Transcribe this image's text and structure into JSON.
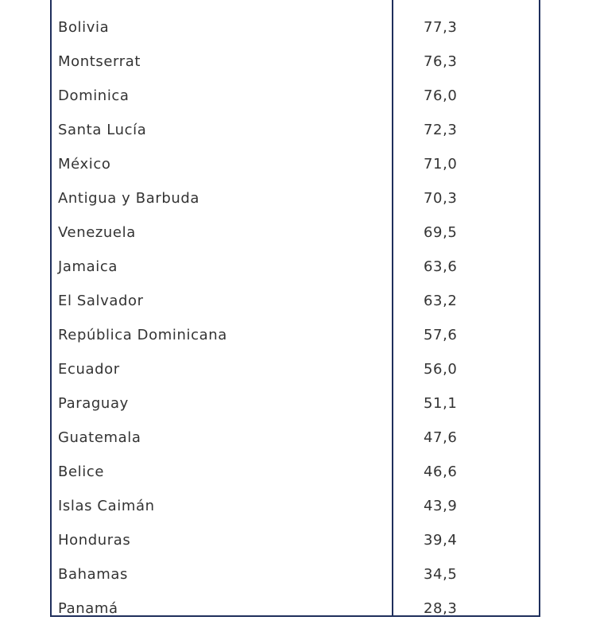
{
  "table": {
    "rows": [
      {
        "country": "Bolivia",
        "value": "77,3"
      },
      {
        "country": "Montserrat",
        "value": "76,3"
      },
      {
        "country": "Dominica",
        "value": "76,0"
      },
      {
        "country": "Santa Lucía",
        "value": "72,3"
      },
      {
        "country": "México",
        "value": "71,0"
      },
      {
        "country": "Antigua y Barbuda",
        "value": "70,3"
      },
      {
        "country": "Venezuela",
        "value": "69,5"
      },
      {
        "country": "Jamaica",
        "value": "63,6"
      },
      {
        "country": "El Salvador",
        "value": "63,2"
      },
      {
        "country": "República Dominicana",
        "value": "57,6"
      },
      {
        "country": "Ecuador",
        "value": "56,0"
      },
      {
        "country": "Paraguay",
        "value": "51,1"
      },
      {
        "country": "Guatemala",
        "value": "47,6"
      },
      {
        "country": "Belice",
        "value": "46,6"
      },
      {
        "country": "Islas Caimán",
        "value": "43,9"
      },
      {
        "country": "Honduras",
        "value": "39,4"
      },
      {
        "country": "Bahamas",
        "value": "34,5"
      },
      {
        "country": "Panamá",
        "value": "28,3"
      }
    ]
  },
  "colors": {
    "border": "#1f2f5c",
    "text": "#333333",
    "background": "#ffffff"
  }
}
